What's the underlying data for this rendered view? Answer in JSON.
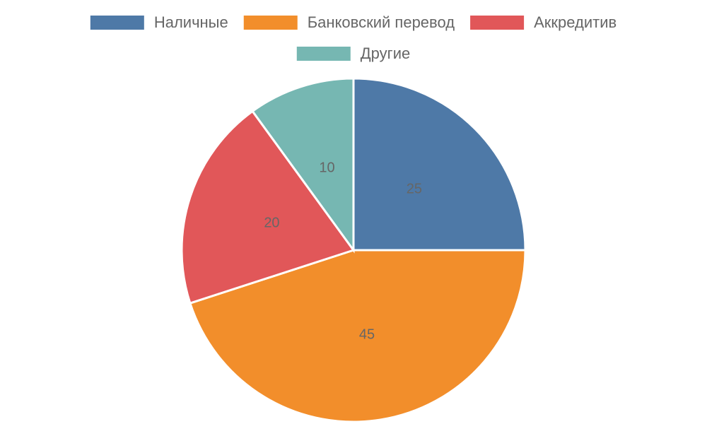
{
  "chart_data": {
    "type": "pie",
    "categories": [
      "Наличные",
      "Банковский перевод",
      "Аккредитив",
      "Другие"
    ],
    "values": [
      25,
      45,
      20,
      10
    ],
    "colors": [
      "#4e79a7",
      "#f28e2b",
      "#e15759",
      "#76b7b2"
    ],
    "legend": "top"
  }
}
